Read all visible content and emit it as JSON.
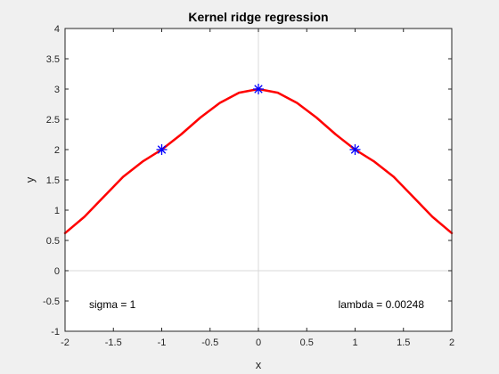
{
  "chart_data": {
    "type": "line",
    "title": "Kernel ridge regression",
    "xlabel": "x",
    "ylabel": "y",
    "xlim": [
      -2,
      2
    ],
    "ylim": [
      -1,
      4
    ],
    "x_ticks": [
      -2,
      -1.5,
      -1,
      -0.5,
      0,
      0.5,
      1,
      1.5,
      2
    ],
    "y_ticks": [
      -1,
      -0.5,
      0,
      0.5,
      1,
      1.5,
      2,
      2.5,
      3,
      3.5,
      4
    ],
    "grid": false,
    "zero_lines": true,
    "series": [
      {
        "style": "line",
        "color": "#ff0000",
        "x": [
          -2,
          -1.8,
          -1.6,
          -1.4,
          -1.2,
          -1,
          -0.8,
          -0.6,
          -0.4,
          -0.2,
          0,
          0.2,
          0.4,
          0.6,
          0.8,
          1,
          1.2,
          1.4,
          1.6,
          1.8,
          2
        ],
        "y": [
          0.62,
          0.89,
          1.22,
          1.55,
          1.8,
          2.0,
          2.25,
          2.53,
          2.77,
          2.94,
          3.0,
          2.94,
          2.77,
          2.53,
          2.25,
          2.0,
          1.8,
          1.55,
          1.22,
          0.89,
          0.62
        ]
      },
      {
        "style": "markers",
        "marker": "asterisk",
        "color": "#0000ff",
        "x": [
          -1,
          0,
          1
        ],
        "y": [
          2,
          3,
          2
        ]
      }
    ],
    "annotations": [
      {
        "text": "sigma = 1",
        "position": "bottom-left"
      },
      {
        "text": "lambda = 0.00248",
        "position": "bottom-right"
      }
    ]
  }
}
